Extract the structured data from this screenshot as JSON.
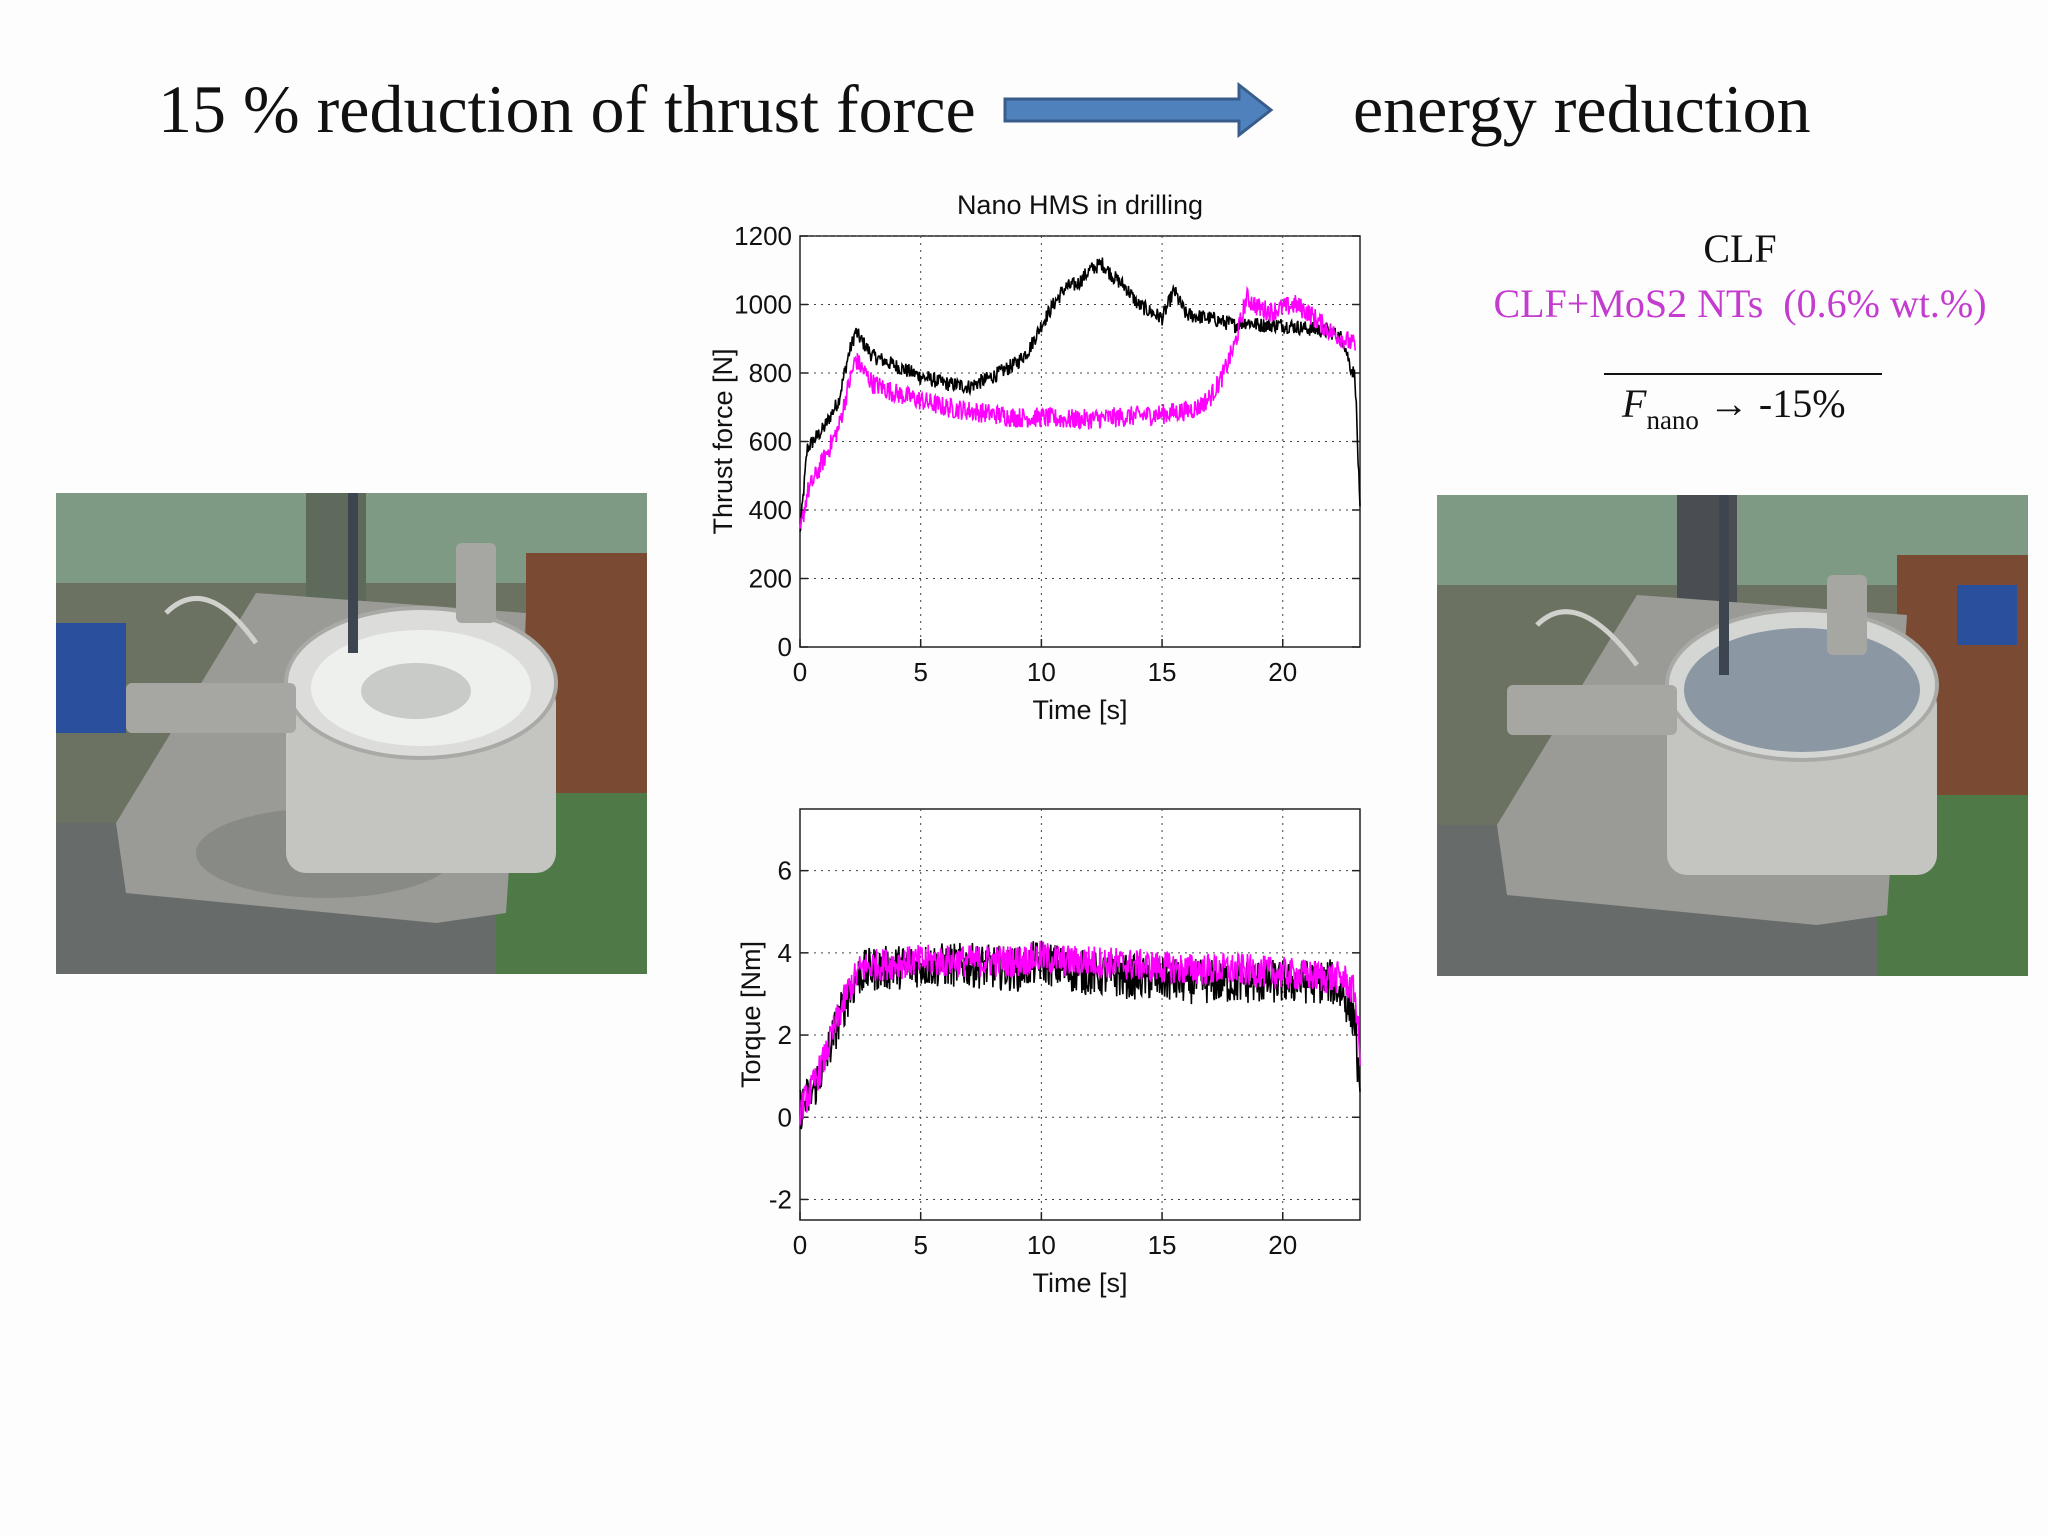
{
  "slide": {
    "headline_left": "15 % reduction of thrust force",
    "headline_right": "energy reduction",
    "legend": {
      "clf": "CLF",
      "clf_mos2": "CLF+MoS2 NTs  (0.6% wt.%)",
      "formula_var": "F",
      "formula_sub": "nano",
      "formula_rest": " → -15%"
    },
    "colors": {
      "clf": "#000000",
      "clf_mos2": "#ff00ff",
      "arrow_fill": "#4f81bd",
      "arrow_stroke": "#385d8a"
    },
    "arrow_icon": "right-arrow-icon",
    "photos": [
      {
        "name": "drilling-setup-photo-clf",
        "description_icon": "drill-photo-icon"
      },
      {
        "name": "drilling-setup-photo-clf-mos2",
        "description_icon": "drill-photo-icon"
      }
    ]
  },
  "chart_data": [
    {
      "type": "line",
      "title": "Nano HMS in drilling",
      "xlabel": "Time [s]",
      "ylabel": "Thrust force [N]",
      "xlim": [
        0,
        23.2
      ],
      "ylim": [
        0,
        1200
      ],
      "xticks": [
        0,
        5,
        10,
        15,
        20
      ],
      "yticks": [
        0,
        200,
        400,
        600,
        800,
        1000,
        1200
      ],
      "grid": true,
      "series": [
        {
          "color": "#000000",
          "x": [
            0,
            0.3,
            1,
            1.6,
            2,
            2.3,
            2.7,
            3,
            4,
            5,
            6,
            7,
            8,
            9,
            9.5,
            10,
            10.5,
            11,
            11.5,
            12,
            12.5,
            13,
            13.5,
            14,
            14.5,
            15,
            15.5,
            16,
            17,
            18,
            18.5,
            19,
            20,
            21,
            22,
            22.5,
            22.8,
            23,
            23.2
          ],
          "y": [
            330,
            580,
            640,
            720,
            850,
            920,
            880,
            850,
            820,
            790,
            770,
            760,
            790,
            830,
            870,
            940,
            1000,
            1050,
            1060,
            1100,
            1120,
            1080,
            1050,
            1000,
            980,
            960,
            1040,
            970,
            960,
            940,
            950,
            940,
            940,
            930,
            920,
            900,
            820,
            790,
            390
          ],
          "noise": 22
        },
        {
          "color": "#ff00ff",
          "x": [
            0,
            0.3,
            1,
            1.6,
            2,
            2.3,
            2.7,
            3,
            4,
            5,
            6,
            7,
            8,
            9,
            10,
            11,
            12,
            13,
            14,
            15,
            16,
            16.5,
            17,
            17.5,
            18,
            18.5,
            19,
            19.5,
            20,
            20.5,
            21,
            22,
            22.5,
            23
          ],
          "y": [
            330,
            450,
            550,
            640,
            760,
            840,
            800,
            770,
            740,
            720,
            700,
            690,
            680,
            670,
            670,
            665,
            665,
            670,
            675,
            680,
            690,
            700,
            730,
            790,
            880,
            1020,
            990,
            980,
            990,
            1000,
            980,
            920,
            900,
            880
          ],
          "noise": 30
        }
      ]
    },
    {
      "type": "line",
      "title": "",
      "xlabel": "Time [s]",
      "ylabel": "Torque [Nm]",
      "xlim": [
        0,
        23.2
      ],
      "ylim": [
        -2.5,
        7.5
      ],
      "xticks": [
        0,
        5,
        10,
        15,
        20
      ],
      "yticks": [
        -2,
        0,
        2,
        4,
        6
      ],
      "grid": true,
      "series": [
        {
          "color": "#000000",
          "x": [
            0,
            0.5,
            1,
            1.5,
            2,
            2.5,
            3,
            5,
            7,
            9,
            10,
            11,
            12,
            14,
            16,
            18,
            20,
            22,
            22.5,
            23,
            23.2
          ],
          "y": [
            0.2,
            0.6,
            1.3,
            2.2,
            3.0,
            3.5,
            3.6,
            3.7,
            3.7,
            3.6,
            3.8,
            3.6,
            3.5,
            3.4,
            3.3,
            3.3,
            3.3,
            3.3,
            3.0,
            2.4,
            0.1
          ],
          "noise": 0.55
        },
        {
          "color": "#ff00ff",
          "x": [
            0,
            0.5,
            1,
            1.5,
            2,
            2.5,
            3,
            5,
            7,
            9,
            10,
            11,
            12,
            14,
            16,
            18,
            20,
            22,
            22.5,
            23,
            23.2
          ],
          "y": [
            0.2,
            0.7,
            1.4,
            2.3,
            3.1,
            3.6,
            3.7,
            3.8,
            3.8,
            3.8,
            3.9,
            3.8,
            3.8,
            3.7,
            3.6,
            3.6,
            3.5,
            3.4,
            3.4,
            3.0,
            1.5
          ],
          "noise": 0.4
        }
      ]
    }
  ]
}
